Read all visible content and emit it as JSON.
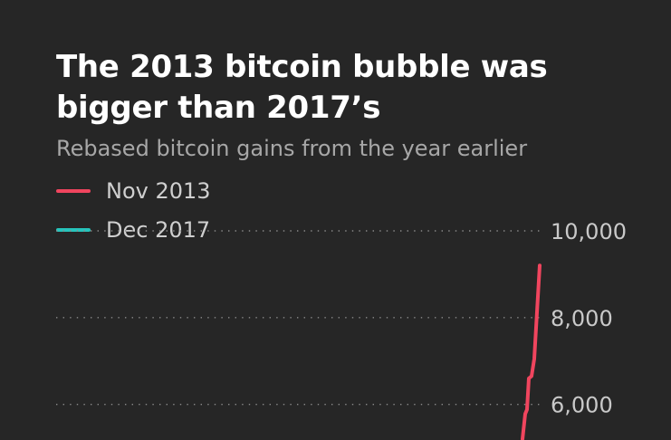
{
  "title": "The 2013 bitcoin bubble was bigger than 2017’s",
  "subtitle": "Rebased bitcoin gains from the year earlier",
  "legend": [
    {
      "label": "Nov 2013",
      "color": "#f0455e"
    },
    {
      "label": "Dec 2017",
      "color": "#26c4bc"
    }
  ],
  "chart_data": {
    "type": "line",
    "title": "The 2013 bitcoin bubble was bigger than 2017’s",
    "subtitle": "Rebased bitcoin gains from the year earlier",
    "ylim": [
      5200,
      10000
    ],
    "y_ticks": [
      {
        "value": 10000,
        "label": "10,000"
      },
      {
        "value": 8000,
        "label": "8,000"
      },
      {
        "value": 6000,
        "label": "6,000"
      }
    ],
    "grid": true,
    "legend_position": "top-left",
    "series": [
      {
        "name": "Nov 2013",
        "color": "#f0455e",
        "points": [
          {
            "step": 0,
            "y": 5200
          },
          {
            "step": 1,
            "y": 5780
          },
          {
            "step": 2,
            "y": 5880
          },
          {
            "step": 3,
            "y": 6600
          },
          {
            "step": 4,
            "y": 6650
          },
          {
            "step": 5,
            "y": 7050
          },
          {
            "step": 6,
            "y": 9200
          }
        ]
      },
      {
        "name": "Dec 2017",
        "color": "#26c4bc",
        "points": []
      }
    ]
  }
}
